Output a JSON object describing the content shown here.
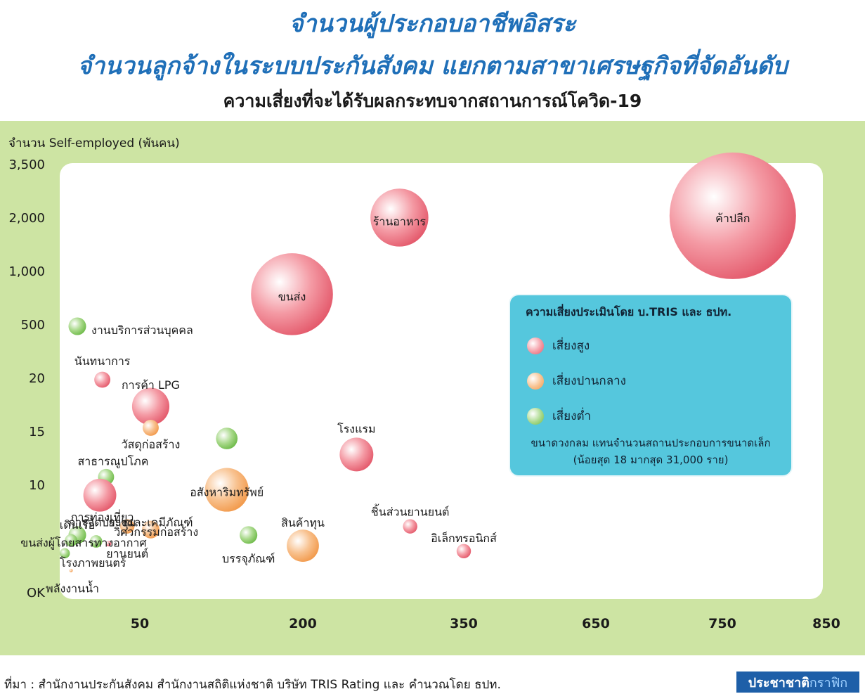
{
  "header": {
    "title_line1": "จำนวนผู้ประกอบอาชีพอิสระ",
    "title_line2": "จำนวนลูกจ้างในระบบประกันสังคม แยกตามสาขาเศรษฐกิจที่จัดอันดับ",
    "subtitle": "ความเสี่ยงที่จะได้รับผลกระทบจากสถานการณ์โควิด-19"
  },
  "chart_data": {
    "type": "scatter",
    "ylabel": "จำนวน Self-employed (พันคน)",
    "y_ticks": [
      "3,500",
      "2,000",
      "1,000",
      "500",
      "20",
      "15",
      "10",
      "OK"
    ],
    "x_ticks": [
      "50",
      "200",
      "350",
      "650",
      "750",
      "850"
    ],
    "risk_colors": {
      "high": "#ee6f7f",
      "medium": "#f6ad67",
      "low": "#8ccc6a"
    },
    "points": [
      {
        "label": "ค้าปลีก",
        "x": 760,
        "y": 2100,
        "size": 31000,
        "risk": "high"
      },
      {
        "label": "ร้านอาหาร",
        "x": 290,
        "y": 2050,
        "size": 6500,
        "risk": "high"
      },
      {
        "label": "ขนส่ง",
        "x": 190,
        "y": 800,
        "size": 13000,
        "risk": "high"
      },
      {
        "label": "งานบริการส่วนบุคคล",
        "x": 0,
        "y": 500,
        "size": 600,
        "risk": "low"
      },
      {
        "label": "นันทนาการ",
        "x": 20,
        "y": 20,
        "size": 500,
        "risk": "high"
      },
      {
        "label": "การค้า LPG",
        "x": 60,
        "y": 17.5,
        "size": 2700,
        "risk": "high"
      },
      {
        "label": "วัสดุก่อสร้าง",
        "x": 60,
        "y": 15.5,
        "size": 500,
        "risk": "medium"
      },
      {
        "label": "",
        "x": 130,
        "y": 14.5,
        "size": 900,
        "risk": "low"
      },
      {
        "label": "โรงแรม",
        "x": 250,
        "y": 13,
        "size": 2200,
        "risk": "high"
      },
      {
        "label": "สาธารณูปโภค",
        "x": 23,
        "y": 10.9,
        "size": 500,
        "risk": "low"
      },
      {
        "label": "",
        "x": 18,
        "y": 9.2,
        "size": 2100,
        "risk": "high"
      },
      {
        "label": "อสังหาริมทรัพย์",
        "x": 130,
        "y": 9.7,
        "size": 3700,
        "risk": "medium"
      },
      {
        "label": "การท่องเที่ยว",
        "x": 20,
        "y": 7.4,
        "size": 0,
        "risk": "high"
      },
      {
        "label": "การจัดประชุม",
        "x": 2,
        "y": 6.9,
        "size": 0,
        "risk": "high"
      },
      {
        "label": "ยางและเคมีภัณฑ์",
        "x": 60,
        "y": 6.9,
        "size": 0,
        "risk": "medium"
      },
      {
        "label": "",
        "x": 40,
        "y": 6.3,
        "size": 400,
        "risk": "medium"
      },
      {
        "label": "",
        "x": 60,
        "y": 6.0,
        "size": 600,
        "risk": "medium"
      },
      {
        "label": "วิศวกรรมก่อสร้าง",
        "x": 65,
        "y": 6.0,
        "size": 0,
        "risk": "medium"
      },
      {
        "label": "เดินเรือ",
        "x": 0,
        "y": 5.5,
        "size": 600,
        "risk": "low"
      },
      {
        "label": "ชิ้นส่วนยานยนต์",
        "x": 300,
        "y": 6.3,
        "size": 400,
        "risk": "high"
      },
      {
        "label": "สินค้าทุน",
        "x": 200,
        "y": 4.5,
        "size": 2000,
        "risk": "medium"
      },
      {
        "label": "ขนส่งผู้โดยสารทางอากาศ",
        "x": 5,
        "y": 5.0,
        "size": 0,
        "risk": "low"
      },
      {
        "label": "",
        "x": -5,
        "y": 5.0,
        "size": 300,
        "risk": "low"
      },
      {
        "label": "",
        "x": 15,
        "y": 4.9,
        "size": 300,
        "risk": "low"
      },
      {
        "label": "",
        "x": 25,
        "y": 4.7,
        "size": 60,
        "risk": "high"
      },
      {
        "label": "ยานยนต์",
        "x": 40,
        "y": 4.0,
        "size": 0,
        "risk": "high"
      },
      {
        "label": "บรรจุภัณฑ์",
        "x": 150,
        "y": 5.5,
        "size": 600,
        "risk": "low"
      },
      {
        "label": "อิเล็กทรอนิกส์",
        "x": 350,
        "y": 4.0,
        "size": 400,
        "risk": "high"
      },
      {
        "label": "โรงภาพยนตร์",
        "x": -10,
        "y": 3.8,
        "size": 200,
        "risk": "low"
      },
      {
        "label": "พลังงานน้ำ",
        "x": -5,
        "y": 2.2,
        "size": 18,
        "risk": "medium"
      }
    ]
  },
  "legend": {
    "title": "ความเสี่ยงประเมินโดย บ.TRIS และ ธปท.",
    "high_label": "เสี่ยงสูง",
    "medium_label": "เสี่ยงปานกลาง",
    "low_label": "เสี่ยงต่ำ",
    "note_line1": "ขนาดวงกลม แทนจำนวนสถานประกอบการขนาดเล็ก",
    "note_line2": "(น้อยสุด 18 มากสุด 31,000 ราย)"
  },
  "footer": {
    "source": "ที่มา : สำนักงานประกันสังคม สำนักงานสถิติแห่งชาติ บริษัท TRIS Rating และ คำนวณโดย ธปท.",
    "brand_dark": "ประชาชาติ",
    "brand_light": "กราฟิก"
  }
}
